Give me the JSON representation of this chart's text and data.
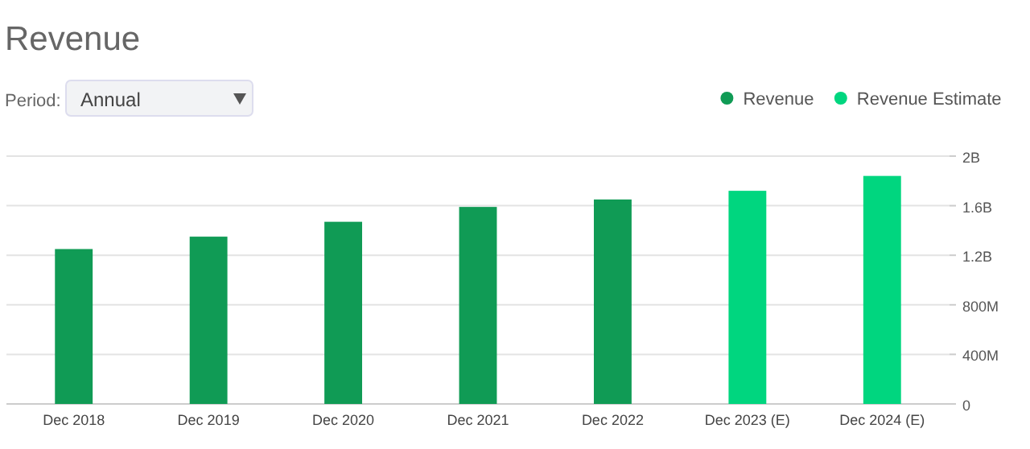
{
  "chart_data": {
    "type": "bar",
    "title": "Revenue",
    "annotations": [
      "Period:",
      "Annual"
    ],
    "categories": [
      "Dec 2018",
      "Dec 2019",
      "Dec 2020",
      "Dec 2021",
      "Dec 2022",
      "Dec 2023 (E)",
      "Dec 2024 (E)"
    ],
    "series": [
      {
        "name": "Revenue",
        "color": "#109b55",
        "values": [
          1250000000,
          1350000000,
          1470000000,
          1590000000,
          1650000000,
          null,
          null
        ]
      },
      {
        "name": "Revenue Estimate",
        "color": "#00d67f",
        "values": [
          null,
          null,
          null,
          null,
          null,
          1720000000,
          1840000000
        ]
      }
    ],
    "ylim": [
      0,
      2000000000
    ],
    "yticks": [
      0,
      {
        "value": 400000000,
        "label": "400M"
      },
      {
        "value": 800000000,
        "label": "800M"
      },
      {
        "value": 1200000000,
        "label": "1.2B"
      },
      {
        "value": 1600000000,
        "label": "1.6B"
      },
      {
        "value": 2000000000,
        "label": "2B"
      }
    ],
    "grid": "y",
    "legend": "top right"
  }
}
